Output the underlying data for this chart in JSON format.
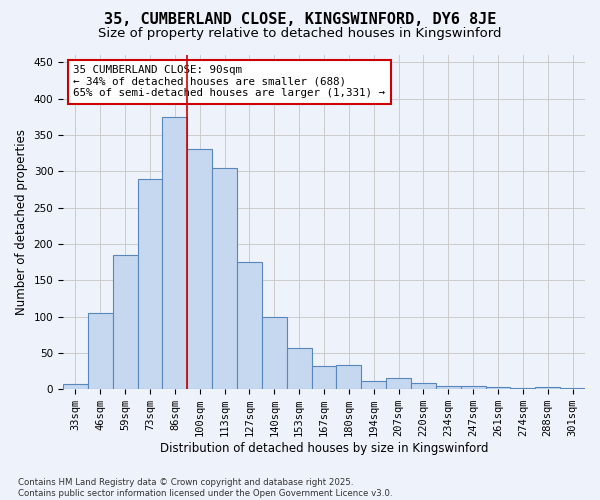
{
  "title": "35, CUMBERLAND CLOSE, KINGSWINFORD, DY6 8JE",
  "subtitle": "Size of property relative to detached houses in Kingswinford",
  "xlabel": "Distribution of detached houses by size in Kingswinford",
  "ylabel": "Number of detached properties",
  "categories": [
    "33sqm",
    "46sqm",
    "59sqm",
    "73sqm",
    "86sqm",
    "100sqm",
    "113sqm",
    "127sqm",
    "140sqm",
    "153sqm",
    "167sqm",
    "180sqm",
    "194sqm",
    "207sqm",
    "220sqm",
    "234sqm",
    "247sqm",
    "261sqm",
    "274sqm",
    "288sqm",
    "301sqm"
  ],
  "values": [
    7,
    105,
    185,
    290,
    375,
    330,
    305,
    175,
    100,
    57,
    32,
    33,
    12,
    15,
    8,
    5,
    5,
    3,
    1,
    3,
    2
  ],
  "bar_color": "#c5d8f0",
  "bar_edge_color": "#5888bb",
  "bar_width": 1.0,
  "vline_x": 4.5,
  "vline_color": "#cc0000",
  "annotation_text": "35 CUMBERLAND CLOSE: 90sqm\n← 34% of detached houses are smaller (688)\n65% of semi-detached houses are larger (1,331) →",
  "annotation_box_color": "#ffffff",
  "annotation_box_edge": "#cc0000",
  "ylim": [
    0,
    460
  ],
  "yticks": [
    0,
    50,
    100,
    150,
    200,
    250,
    300,
    350,
    400,
    450
  ],
  "grid_color": "#cccccc",
  "background_color": "#eef2fb",
  "footer": "Contains HM Land Registry data © Crown copyright and database right 2025.\nContains public sector information licensed under the Open Government Licence v3.0.",
  "title_fontsize": 11,
  "subtitle_fontsize": 9.5,
  "axis_label_fontsize": 8.5,
  "tick_fontsize": 7.5,
  "annotation_fontsize": 7.8
}
